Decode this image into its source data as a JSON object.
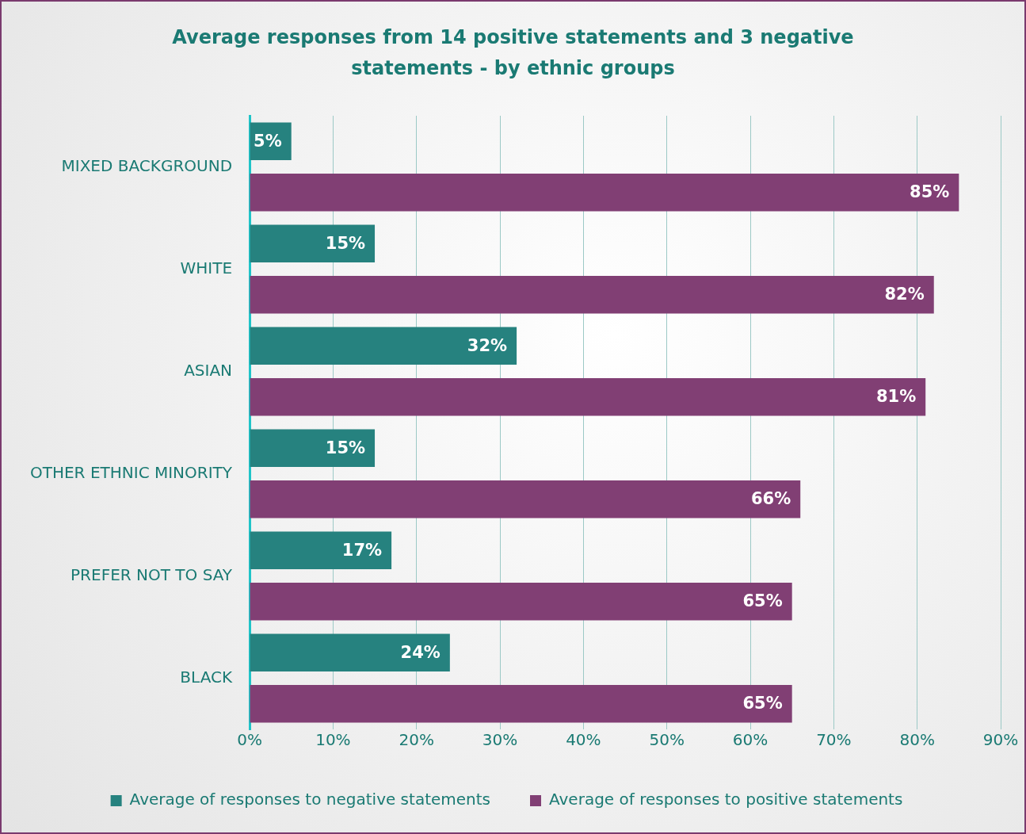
{
  "chart_data": {
    "type": "bar",
    "orientation": "horizontal",
    "title": "Average responses from 14 positive statements and 3 negative statements - by ethnic groups",
    "categories": [
      "MIXED BACKGROUND",
      "WHITE",
      "ASIAN",
      "OTHER ETHNIC MINORITY",
      "PREFER NOT TO SAY",
      "BLACK"
    ],
    "series": [
      {
        "name": "Average of responses to negative statements",
        "color": "#26827f",
        "values": [
          5,
          15,
          32,
          15,
          17,
          24
        ],
        "value_labels": [
          "5%",
          "15%",
          "32%",
          "15%",
          "17%",
          "24%"
        ]
      },
      {
        "name": "Average of responses to positive statements",
        "color": "#813f74",
        "values": [
          85,
          82,
          81,
          66,
          65,
          65
        ],
        "value_labels": [
          "85%",
          "82%",
          "81%",
          "66%",
          "65%",
          "65%"
        ]
      }
    ],
    "xlim": [
      0,
      90
    ],
    "xticks": [
      {
        "value": 0,
        "label": "0%"
      },
      {
        "value": 10,
        "label": "10%"
      },
      {
        "value": 20,
        "label": "20%"
      },
      {
        "value": 30,
        "label": "30%"
      },
      {
        "value": 40,
        "label": "40%"
      },
      {
        "value": 50,
        "label": "50%"
      },
      {
        "value": 60,
        "label": "60%"
      },
      {
        "value": 70,
        "label": "70%"
      },
      {
        "value": 80,
        "label": "80%"
      },
      {
        "value": 90,
        "label": "90%"
      }
    ],
    "grid": "x",
    "legend": "bottom"
  }
}
